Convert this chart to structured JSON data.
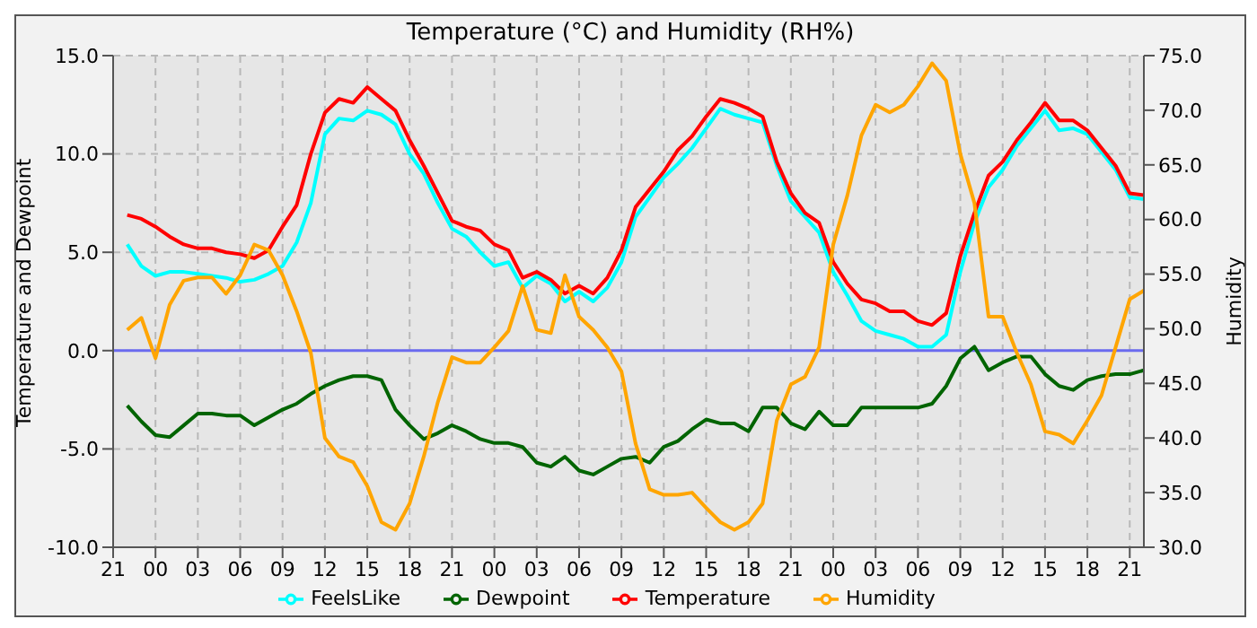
{
  "chart_data": {
    "type": "line",
    "title": "Temperature (°C) and Humidity (RH%)",
    "ylabel": "Temperature and Dewpoint",
    "y2label": "Humidity",
    "categories": [
      "21",
      null,
      null,
      "00",
      null,
      null,
      "03",
      null,
      null,
      "06",
      null,
      null,
      "09",
      null,
      null,
      "12",
      null,
      null,
      "15",
      null,
      null,
      "18",
      null,
      null,
      "21",
      null,
      null,
      "00",
      null,
      null,
      "03",
      null,
      null,
      "06",
      null,
      null,
      "09",
      null,
      null,
      "12",
      null,
      null,
      "15",
      null,
      null,
      "18",
      null,
      null,
      "21",
      null,
      null,
      "00",
      null,
      null,
      "03",
      null,
      null,
      "06",
      null,
      null,
      "09",
      null,
      null,
      "12",
      null,
      null,
      "15",
      null,
      null,
      "18",
      null,
      null,
      "21",
      null
    ],
    "ylim": [
      -10,
      15
    ],
    "yticks": [
      {
        "value": -10,
        "label": "-10.0"
      },
      {
        "value": -5,
        "label": "-5.0"
      },
      {
        "value": 0,
        "label": "0.0"
      },
      {
        "value": 5,
        "label": "5.0"
      },
      {
        "value": 10,
        "label": "10.0"
      },
      {
        "value": 15,
        "label": "15.0"
      }
    ],
    "y2lim": [
      30,
      75
    ],
    "y2ticks": [
      {
        "value": 30,
        "label": "30.0"
      },
      {
        "value": 35,
        "label": "35.0"
      },
      {
        "value": 40,
        "label": "40.0"
      },
      {
        "value": 45,
        "label": "45.0"
      },
      {
        "value": 50,
        "label": "50.0"
      },
      {
        "value": 55,
        "label": "55.0"
      },
      {
        "value": 60,
        "label": "60.0"
      },
      {
        "value": 65,
        "label": "65.0"
      },
      {
        "value": 70,
        "label": "70.0"
      },
      {
        "value": 75,
        "label": "75.0"
      }
    ],
    "grid": true,
    "legend": "bottom",
    "marker": "none",
    "line_style": "solid",
    "ref_lines": [
      {
        "axis": "y",
        "value": 0,
        "color": "#6a6aef"
      }
    ],
    "series": [
      {
        "name": "FeelsLike",
        "color": "#00ffff",
        "values": [
          null,
          5.4,
          4.3,
          3.8,
          4.0,
          4.0,
          3.9,
          3.8,
          3.7,
          3.5,
          3.6,
          3.9,
          4.3,
          5.5,
          7.5,
          11.0,
          11.8,
          11.7,
          12.2,
          12.0,
          11.5,
          10.0,
          9.0,
          7.5,
          6.2,
          5.8,
          5.0,
          4.3,
          4.5,
          3.2,
          3.8,
          3.4,
          2.5,
          3.0,
          2.5,
          3.2,
          4.5,
          6.8,
          7.8,
          8.8,
          9.5,
          10.3,
          11.3,
          12.3,
          12.0,
          11.8,
          11.6,
          9.4,
          7.6,
          6.8,
          6.0,
          4.0,
          2.8,
          1.5,
          1.0,
          0.8,
          0.6,
          0.2,
          0.2,
          0.8,
          4.0,
          6.5,
          8.3,
          9.2,
          10.4,
          11.3,
          12.2,
          11.2,
          11.3,
          11.0,
          10.1,
          9.2,
          7.8,
          7.7
        ]
      },
      {
        "name": "Dewpoint",
        "color": "#006400",
        "values": [
          null,
          -2.8,
          -3.6,
          -4.3,
          -4.4,
          -3.8,
          -3.2,
          -3.2,
          -3.3,
          -3.3,
          -3.8,
          -3.4,
          -3.0,
          -2.7,
          -2.2,
          -1.8,
          -1.5,
          -1.3,
          -1.3,
          -1.5,
          -3.0,
          -3.8,
          -4.5,
          -4.2,
          -3.8,
          -4.1,
          -4.5,
          -4.7,
          -4.7,
          -4.9,
          -5.7,
          -5.9,
          -5.4,
          -6.1,
          -6.3,
          -5.9,
          -5.5,
          -5.4,
          -5.7,
          -4.9,
          -4.6,
          -4.0,
          -3.5,
          -3.7,
          -3.7,
          -4.1,
          -2.9,
          -2.9,
          -3.7,
          -4.0,
          -3.1,
          -3.8,
          -3.8,
          -2.9,
          -2.9,
          -2.9,
          -2.9,
          -2.9,
          -2.7,
          -1.8,
          -0.4,
          0.2,
          -1.0,
          -0.6,
          -0.3,
          -0.3,
          -1.2,
          -1.8,
          -2.0,
          -1.5,
          -1.3,
          -1.2,
          -1.2,
          -1.0
        ]
      },
      {
        "name": "Temperature",
        "color": "#ff0000",
        "values": [
          null,
          6.9,
          6.7,
          6.3,
          5.8,
          5.4,
          5.2,
          5.2,
          5.0,
          4.9,
          4.7,
          5.1,
          6.3,
          7.4,
          10.0,
          12.1,
          12.8,
          12.6,
          13.4,
          12.8,
          12.2,
          10.7,
          9.4,
          8.0,
          6.6,
          6.3,
          6.1,
          5.4,
          5.1,
          3.7,
          4.0,
          3.6,
          2.9,
          3.3,
          2.9,
          3.7,
          5.1,
          7.3,
          8.2,
          9.1,
          10.2,
          10.9,
          11.9,
          12.8,
          12.6,
          12.3,
          11.9,
          9.6,
          8.0,
          7.0,
          6.5,
          4.5,
          3.4,
          2.6,
          2.4,
          2.0,
          2.0,
          1.5,
          1.3,
          1.9,
          4.8,
          7.0,
          8.9,
          9.6,
          10.7,
          11.6,
          12.6,
          11.7,
          11.7,
          11.2,
          10.3,
          9.4,
          8.0,
          7.9
        ]
      },
      {
        "name": "Humidity",
        "color": "#ffa500",
        "axis": "y2",
        "values": [
          null,
          49.9,
          51.0,
          47.3,
          52.2,
          54.4,
          54.7,
          54.7,
          53.2,
          54.9,
          57.7,
          57.2,
          54.9,
          51.6,
          47.8,
          40.0,
          38.3,
          37.8,
          35.6,
          32.3,
          31.6,
          34.0,
          38.3,
          43.3,
          47.4,
          46.9,
          46.9,
          48.3,
          49.8,
          53.9,
          49.9,
          49.6,
          54.9,
          51.1,
          49.9,
          48.3,
          46.1,
          39.5,
          35.3,
          34.8,
          34.8,
          35.0,
          33.6,
          32.3,
          31.6,
          32.3,
          34.0,
          41.6,
          44.9,
          45.6,
          48.3,
          57.7,
          62.2,
          67.7,
          70.5,
          69.8,
          70.5,
          72.2,
          74.3,
          72.7,
          66.0,
          61.5,
          51.1,
          51.1,
          47.8,
          44.9,
          40.6,
          40.3,
          39.5,
          41.6,
          43.9,
          48.3,
          52.7,
          53.5
        ]
      }
    ]
  }
}
